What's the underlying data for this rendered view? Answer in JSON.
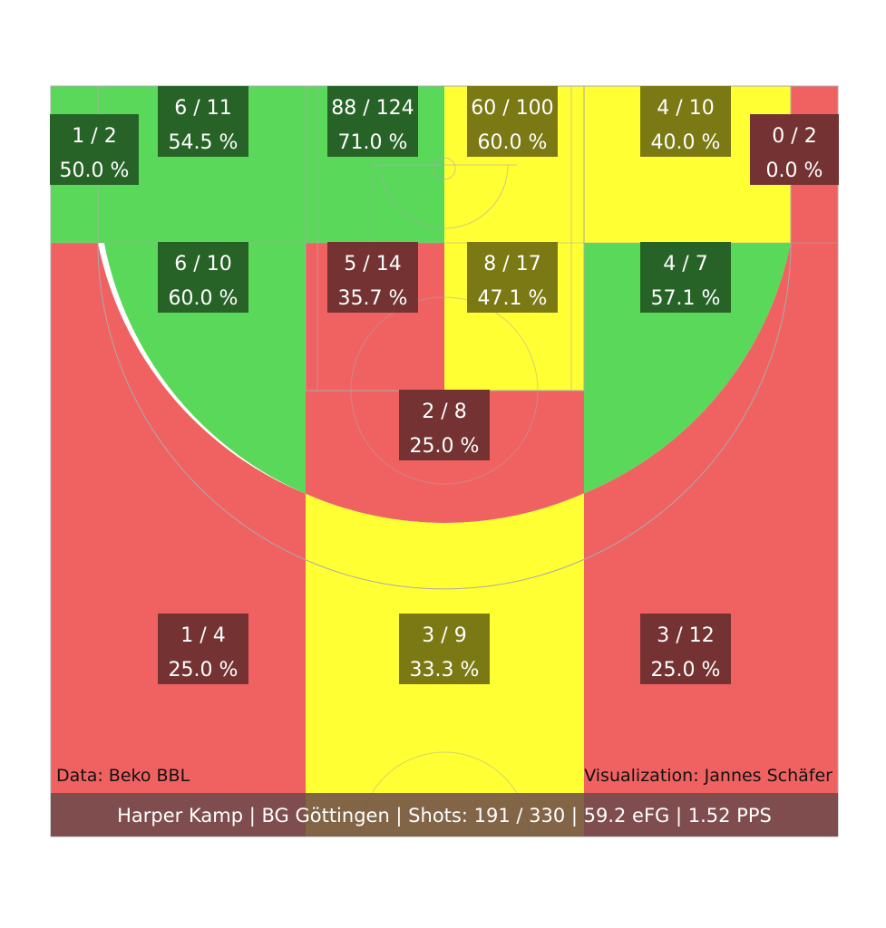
{
  "colors": {
    "good": "#5ad85a",
    "average": "#ffff33",
    "bad": "#f06262",
    "good_label": "#276327",
    "average_label": "#7b7914",
    "bad_label": "#743232",
    "footer": "#6b4a4a",
    "court_lines": "#aaaaaa"
  },
  "chart_data": {
    "type": "shot-chart",
    "zones": [
      {
        "id": "left-corner-three",
        "made": 1,
        "attempts": 2,
        "made_label": "1 / 2",
        "pct_label": "50.0 %",
        "rating": "good"
      },
      {
        "id": "left-short-corner",
        "made": 6,
        "attempts": 11,
        "made_label": "6 / 11",
        "pct_label": "54.5 %",
        "rating": "good"
      },
      {
        "id": "left-restricted",
        "made": 88,
        "attempts": 124,
        "made_label": "88 / 124",
        "pct_label": "71.0 %",
        "rating": "good"
      },
      {
        "id": "right-restricted",
        "made": 60,
        "attempts": 100,
        "made_label": "60 / 100",
        "pct_label": "60.0 %",
        "rating": "average"
      },
      {
        "id": "right-short-corner",
        "made": 4,
        "attempts": 10,
        "made_label": "4 / 10",
        "pct_label": "40.0 %",
        "rating": "average"
      },
      {
        "id": "right-corner-three",
        "made": 0,
        "attempts": 2,
        "made_label": "0 / 2",
        "pct_label": "0.0 %",
        "rating": "bad"
      },
      {
        "id": "left-mid-range",
        "made": 6,
        "attempts": 10,
        "made_label": "6 / 10",
        "pct_label": "60.0 %",
        "rating": "good"
      },
      {
        "id": "left-paint",
        "made": 5,
        "attempts": 14,
        "made_label": "5 / 14",
        "pct_label": "35.7 %",
        "rating": "bad"
      },
      {
        "id": "right-paint",
        "made": 8,
        "attempts": 17,
        "made_label": "8 / 17",
        "pct_label": "47.1 %",
        "rating": "average"
      },
      {
        "id": "right-mid-range",
        "made": 4,
        "attempts": 7,
        "made_label": "4 / 7",
        "pct_label": "57.1 %",
        "rating": "good"
      },
      {
        "id": "top-of-key",
        "made": 2,
        "attempts": 8,
        "made_label": "2 / 8",
        "pct_label": "25.0 %",
        "rating": "bad"
      },
      {
        "id": "left-wing-three",
        "made": 1,
        "attempts": 4,
        "made_label": "1 / 4",
        "pct_label": "25.0 %",
        "rating": "bad"
      },
      {
        "id": "center-three",
        "made": 3,
        "attempts": 9,
        "made_label": "3 / 9",
        "pct_label": "33.3 %",
        "rating": "average"
      },
      {
        "id": "right-wing-three",
        "made": 3,
        "attempts": 12,
        "made_label": "3 / 12",
        "pct_label": "25.0 %",
        "rating": "bad"
      }
    ]
  },
  "credits": {
    "data_source": "Data: Beko BBL",
    "visualization": "Visualization: Jannes Schäfer"
  },
  "footer": {
    "summary": "Harper Kamp | BG Göttingen | Shots: 191 / 330 | 59.2 eFG | 1.52 PPS"
  }
}
